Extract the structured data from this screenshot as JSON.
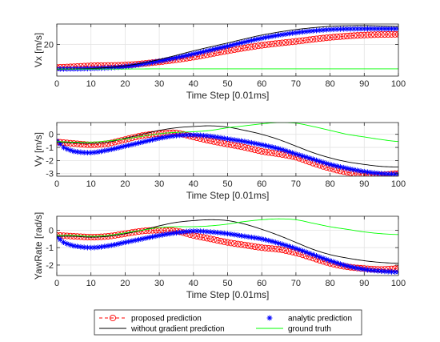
{
  "chart_data": [
    {
      "type": "line",
      "ylabel": "Vx [m/s]",
      "xlabel": "Time Step [0.01ms]",
      "xlim": [
        0,
        100
      ],
      "ylim": [
        0,
        33
      ],
      "xticks": [
        0,
        10,
        20,
        30,
        40,
        50,
        60,
        70,
        80,
        90,
        100
      ],
      "yticks": [
        20
      ],
      "grid": true,
      "series": [
        {
          "name": "proposed prediction",
          "x": [
            0,
            10,
            20,
            30,
            40,
            50,
            60,
            70,
            80,
            90,
            100
          ],
          "y": [
            5.5,
            6.5,
            7,
            9,
            12,
            16,
            19.5,
            22,
            24.5,
            26,
            26.5
          ]
        },
        {
          "name": "analytic prediction",
          "x": [
            0,
            10,
            20,
            30,
            40,
            50,
            60,
            70,
            80,
            90,
            100
          ],
          "y": [
            4.5,
            4.8,
            6,
            9.5,
            14,
            19,
            24,
            27.5,
            29.5,
            30,
            30
          ]
        },
        {
          "name": "without gradient prediction",
          "x": [
            0,
            10,
            20,
            30,
            40,
            50,
            60,
            70,
            80,
            90,
            100
          ],
          "y": [
            4.5,
            4.8,
            6.5,
            10.5,
            16,
            21,
            26,
            29.5,
            31.5,
            32,
            31.5
          ]
        },
        {
          "name": "ground truth",
          "x": [
            0,
            10,
            20,
            30,
            40,
            50,
            60,
            70,
            80,
            90,
            100
          ],
          "y": [
            4.5,
            4.5,
            4.5,
            4.6,
            4.6,
            4.6,
            4.6,
            4.6,
            4.6,
            4.6,
            4.6
          ]
        }
      ]
    },
    {
      "type": "line",
      "ylabel": "Vy [m/s]",
      "xlabel": "Time Step [0.01ms]",
      "xlim": [
        0,
        100
      ],
      "ylim": [
        -3.2,
        0.9
      ],
      "xticks": [
        0,
        10,
        20,
        30,
        40,
        50,
        60,
        70,
        80,
        90,
        100
      ],
      "yticks": [
        -3,
        -2,
        -1,
        0
      ],
      "grid": true,
      "series": [
        {
          "name": "proposed prediction",
          "x": [
            0,
            5,
            10,
            15,
            20,
            25,
            30,
            35,
            40,
            45,
            50,
            55,
            60,
            65,
            70,
            75,
            80,
            85,
            90,
            95,
            100
          ],
          "y": [
            -0.6,
            -0.7,
            -0.8,
            -0.7,
            -0.4,
            -0.1,
            0.05,
            0.1,
            -0.2,
            -0.5,
            -0.75,
            -1.0,
            -1.3,
            -1.5,
            -1.75,
            -2.2,
            -2.6,
            -2.9,
            -3.1,
            -3.1,
            -3.0
          ]
        },
        {
          "name": "analytic prediction",
          "x": [
            0,
            2,
            5,
            10,
            15,
            20,
            25,
            30,
            35,
            40,
            45,
            50,
            55,
            60,
            65,
            70,
            75,
            80,
            85,
            90,
            95,
            100
          ],
          "y": [
            -0.5,
            -1.0,
            -1.3,
            -1.4,
            -1.2,
            -0.9,
            -0.6,
            -0.3,
            -0.1,
            -0.05,
            -0.15,
            -0.35,
            -0.55,
            -0.8,
            -1.1,
            -1.5,
            -1.9,
            -2.3,
            -2.6,
            -2.85,
            -3.0,
            -3.05
          ]
        },
        {
          "name": "without gradient prediction",
          "x": [
            0,
            5,
            10,
            15,
            20,
            25,
            30,
            35,
            40,
            45,
            50,
            55,
            60,
            65,
            70,
            75,
            80,
            85,
            90,
            95,
            100
          ],
          "y": [
            -0.6,
            -0.65,
            -0.7,
            -0.6,
            -0.3,
            0,
            0.3,
            0.5,
            0.6,
            0.65,
            0.55,
            0.3,
            0,
            -0.4,
            -0.9,
            -1.4,
            -1.8,
            -2.1,
            -2.3,
            -2.45,
            -2.5
          ]
        },
        {
          "name": "ground truth",
          "x": [
            0,
            5,
            10,
            15,
            20,
            25,
            30,
            35,
            40,
            45,
            50,
            55,
            60,
            65,
            70,
            75,
            80,
            85,
            90,
            95,
            100
          ],
          "y": [
            -0.55,
            -0.6,
            -0.6,
            -0.5,
            -0.35,
            -0.15,
            0.05,
            0.15,
            0.2,
            0.3,
            0.5,
            0.65,
            0.8,
            0.9,
            0.85,
            0.6,
            0.3,
            0,
            -0.2,
            -0.4,
            -0.55
          ]
        }
      ]
    },
    {
      "type": "line",
      "ylabel": "YawRate [rad/s]",
      "xlabel": "Time Step [0.01ms]",
      "xlim": [
        0,
        100
      ],
      "ylim": [
        -2.6,
        0.8
      ],
      "xticks": [
        0,
        10,
        20,
        30,
        40,
        50,
        60,
        70,
        80,
        90,
        100
      ],
      "yticks": [
        -2,
        -1,
        0
      ],
      "grid": true,
      "series": [
        {
          "name": "proposed prediction",
          "x": [
            0,
            5,
            10,
            15,
            20,
            25,
            30,
            35,
            40,
            45,
            50,
            55,
            60,
            65,
            70,
            75,
            80,
            85,
            90,
            95,
            100
          ],
          "y": [
            -0.3,
            -0.35,
            -0.4,
            -0.35,
            -0.2,
            -0.05,
            0.0,
            -0.05,
            -0.3,
            -0.5,
            -0.7,
            -0.85,
            -1.0,
            -1.1,
            -1.3,
            -1.6,
            -1.9,
            -2.1,
            -2.2,
            -2.25,
            -2.2
          ]
        },
        {
          "name": "analytic prediction",
          "x": [
            0,
            2,
            5,
            10,
            15,
            20,
            25,
            30,
            35,
            40,
            45,
            50,
            55,
            60,
            65,
            70,
            75,
            80,
            85,
            90,
            95,
            100
          ],
          "y": [
            -0.4,
            -0.7,
            -0.9,
            -1.0,
            -0.9,
            -0.7,
            -0.5,
            -0.3,
            -0.15,
            -0.05,
            -0.1,
            -0.2,
            -0.35,
            -0.5,
            -0.75,
            -1.05,
            -1.4,
            -1.75,
            -2.05,
            -2.25,
            -2.35,
            -2.4
          ]
        },
        {
          "name": "without gradient prediction",
          "x": [
            0,
            5,
            10,
            15,
            20,
            25,
            30,
            35,
            40,
            45,
            50,
            55,
            60,
            65,
            70,
            75,
            80,
            85,
            90,
            95,
            100
          ],
          "y": [
            -0.35,
            -0.35,
            -0.4,
            -0.35,
            -0.2,
            0,
            0.25,
            0.45,
            0.55,
            0.6,
            0.55,
            0.35,
            0.05,
            -0.3,
            -0.7,
            -1.1,
            -1.4,
            -1.6,
            -1.75,
            -1.85,
            -1.9
          ]
        },
        {
          "name": "ground truth",
          "x": [
            0,
            5,
            10,
            15,
            20,
            25,
            30,
            35,
            40,
            45,
            50,
            55,
            60,
            65,
            70,
            75,
            80,
            85,
            90,
            95,
            100
          ],
          "y": [
            -0.3,
            -0.3,
            -0.35,
            -0.3,
            -0.15,
            0,
            0.15,
            0.2,
            0.2,
            0.25,
            0.35,
            0.5,
            0.6,
            0.65,
            0.6,
            0.4,
            0.2,
            0.05,
            -0.1,
            -0.2,
            -0.25
          ]
        }
      ]
    }
  ],
  "legend": {
    "placement": "bottom",
    "items": [
      {
        "label": "proposed prediction",
        "color": "#ff0000",
        "marker": "circle",
        "dash": true
      },
      {
        "label": "analytic prediction",
        "color": "#0000ff",
        "marker": "star",
        "dash": false
      },
      {
        "label": "without gradient prediction",
        "color": "#000000",
        "marker": "none",
        "dash": false
      },
      {
        "label": "ground truth",
        "color": "#00ff00",
        "marker": "none",
        "dash": false
      }
    ]
  },
  "colors": {
    "proposed prediction": "#ff0000",
    "analytic prediction": "#0000ff",
    "without gradient prediction": "#000000",
    "ground truth": "#00ff00"
  }
}
